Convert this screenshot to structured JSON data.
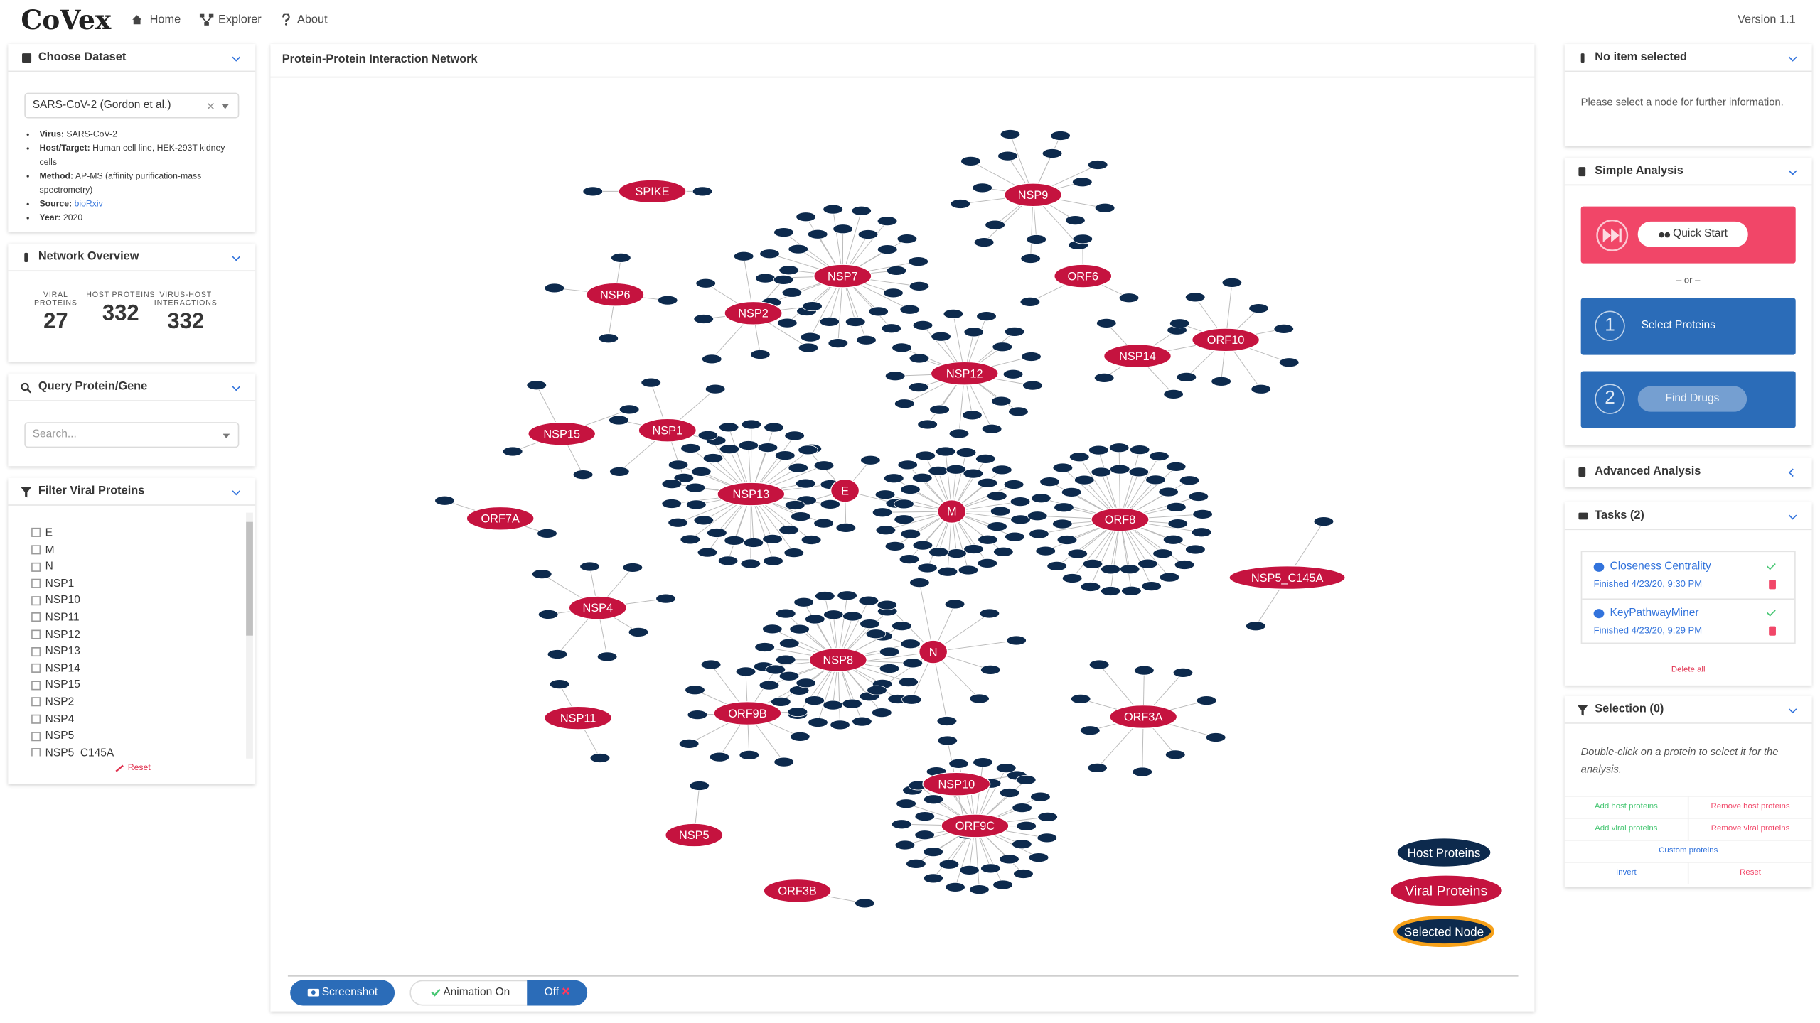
{
  "header": {
    "logo": "CoVex",
    "nav": [
      "Home",
      "Explorer",
      "About"
    ],
    "version": "Version 1.1"
  },
  "dataset": {
    "title": "Choose Dataset",
    "selected": "SARS-CoV-2 (Gordon et al.)",
    "details": [
      {
        "label": "Virus:",
        "value": "SARS-CoV-2"
      },
      {
        "label": "Host/Target:",
        "value": "Human cell line, HEK-293T kidney cells"
      },
      {
        "label": "Method:",
        "value": "AP-MS (affinity purification-mass spectrometry)"
      },
      {
        "label": "Source:",
        "value": "bioRxiv"
      },
      {
        "label": "Year:",
        "value": "2020"
      }
    ]
  },
  "overview": {
    "title": "Network Overview",
    "stats": [
      {
        "label": "VIRAL PROTEINS",
        "value": 27
      },
      {
        "label": "HOST PROTEINS",
        "value": 332
      },
      {
        "label": "VIRUS-HOST INTERACTIONS",
        "value": 332
      }
    ]
  },
  "query": {
    "title": "Query Protein/Gene",
    "placeholder": "Search..."
  },
  "filter": {
    "title": "Filter Viral Proteins",
    "items": [
      "E",
      "M",
      "N",
      "NSP1",
      "NSP10",
      "NSP11",
      "NSP12",
      "NSP13",
      "NSP14",
      "NSP15",
      "NSP2",
      "NSP4",
      "NSP5",
      "NSP5_C145A"
    ],
    "reset": "Reset"
  },
  "network": {
    "title": "Protein-Protein Interaction Network",
    "viral_nodes": [
      "SPIKE",
      "NSP6",
      "NSP7",
      "NSP9",
      "ORF6",
      "NSP2",
      "NSP12",
      "NSP14",
      "ORF10",
      "NSP15",
      "NSP1",
      "NSP13",
      "E",
      "M",
      "ORF8",
      "ORF7A",
      "NSP5_C145A",
      "NSP4",
      "NSP8",
      "N",
      "ORF9B",
      "NSP11",
      "ORF3A",
      "NSP10",
      "ORF9C",
      "NSP5",
      "ORF3B"
    ],
    "legend": [
      "Host Proteins",
      "Viral Proteins",
      "Selected Node"
    ],
    "buttons": {
      "screenshot": "Screenshot",
      "animation_on": "Animation On",
      "off": "Off"
    }
  },
  "info": {
    "title": "No item selected",
    "text": "Please select a node for further information."
  },
  "simple_analysis": {
    "title": "Simple Analysis",
    "quick_start": "Quick Start",
    "or": "– or –",
    "steps": [
      {
        "number": 1,
        "label": "Select Proteins"
      },
      {
        "number": 2,
        "label": "Find Drugs"
      }
    ]
  },
  "advanced_analysis": {
    "title": "Advanced Analysis"
  },
  "tasks": {
    "title": "Tasks (2)",
    "items": [
      {
        "name": "Closeness Centrality",
        "status": "Finished 4/23/20, 9:30 PM"
      },
      {
        "name": "KeyPathwayMiner",
        "status": "Finished 4/23/20, 9:29 PM"
      }
    ],
    "delete_all": "Delete all"
  },
  "selection": {
    "title": "Selection (0)",
    "hint": "Double-click on a protein to select it for the analysis.",
    "buttons": [
      "Add host proteins",
      "Remove host proteins",
      "Add viral proteins",
      "Remove viral proteins",
      "Custom proteins",
      "Invert",
      "Reset"
    ]
  }
}
